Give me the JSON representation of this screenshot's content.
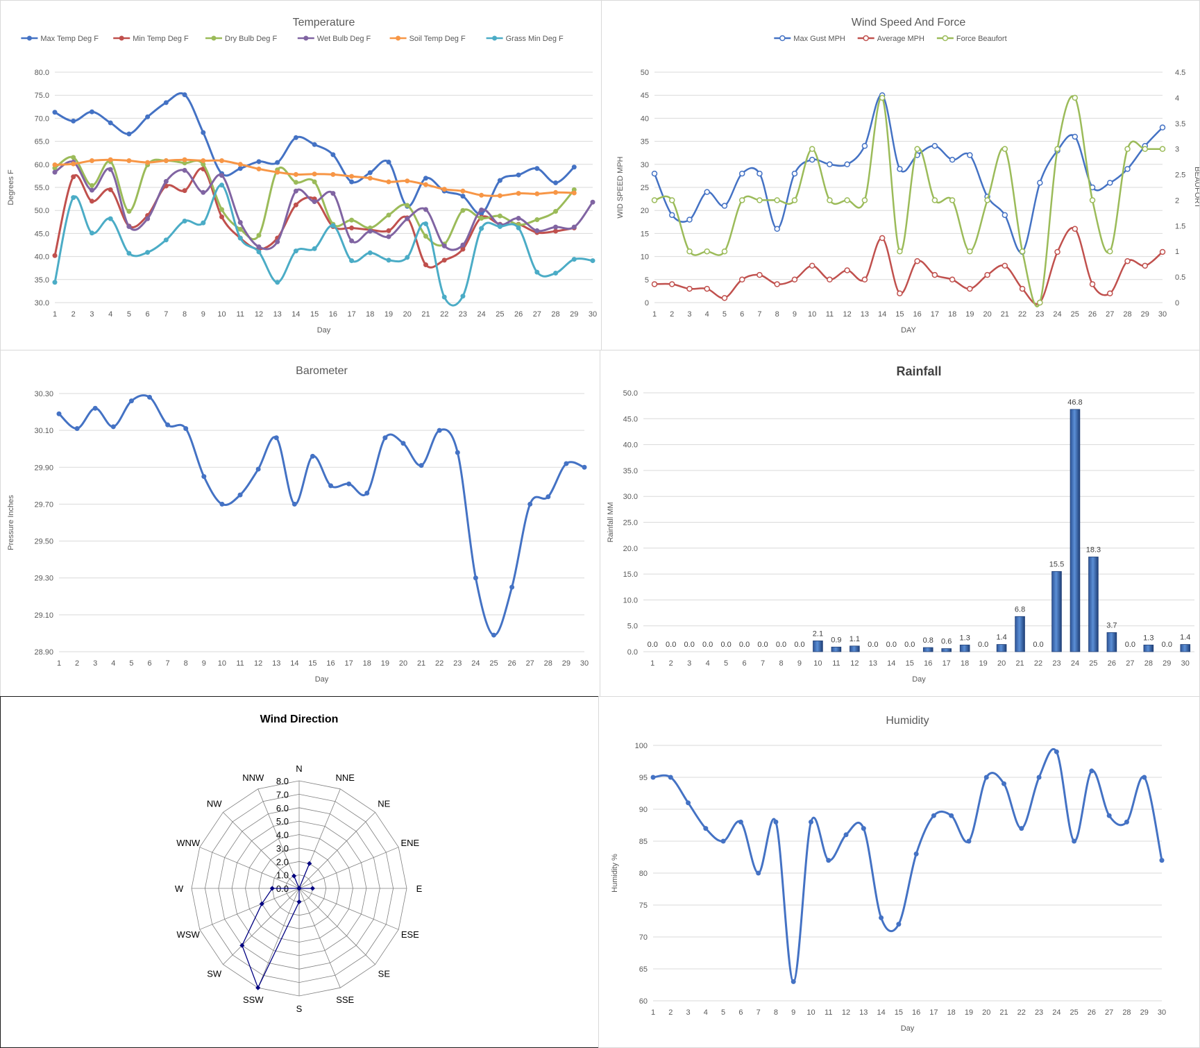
{
  "days": [
    "1",
    "2",
    "3",
    "4",
    "5",
    "6",
    "7",
    "8",
    "9",
    "10",
    "11",
    "12",
    "13",
    "14",
    "15",
    "16",
    "17",
    "18",
    "19",
    "20",
    "21",
    "22",
    "23",
    "24",
    "25",
    "26",
    "27",
    "28",
    "29",
    "30"
  ],
  "chart_data": [
    {
      "type": "line",
      "title": "Temperature",
      "xlabel": "Day",
      "ylabel": "Degrees F",
      "ylim": [
        30,
        80
      ],
      "yticks": [
        "30.0",
        "35.0",
        "40.0",
        "45.0",
        "50.0",
        "55.0",
        "60.0",
        "65.0",
        "70.0",
        "75.0",
        "80.0"
      ],
      "grid": true,
      "legend": "top",
      "series": [
        {
          "name": "Max Temp Deg F",
          "color": "#4472C4",
          "values": [
            71.3,
            69.4,
            71.4,
            69.0,
            66.6,
            70.3,
            73.4,
            75.1,
            66.9,
            58.0,
            59.1,
            60.6,
            60.4,
            65.8,
            64.3,
            62.1,
            56.2,
            58.2,
            60.5,
            50.9,
            57.0,
            54.2,
            53.1,
            49.3,
            56.5,
            57.7,
            59.1,
            56.0,
            59.4,
            null
          ]
        },
        {
          "name": "Min Temp Deg F",
          "color": "#C0504D",
          "values": [
            40.2,
            57.3,
            52.0,
            54.5,
            46.6,
            48.9,
            55.3,
            54.3,
            59.0,
            48.6,
            44.0,
            41.6,
            44.0,
            51.2,
            52.5,
            46.5,
            46.2,
            45.8,
            45.6,
            48.4,
            38.2,
            39.2,
            41.6,
            48.5,
            47.0,
            47.0,
            45.2,
            45.5,
            46.2,
            null
          ]
        },
        {
          "name": "Dry Bulb Deg F",
          "color": "#9BBB59",
          "values": [
            59.2,
            61.5,
            55.4,
            60.6,
            49.8,
            59.9,
            60.8,
            60.3,
            60.0,
            50.2,
            45.9,
            44.6,
            58.8,
            56.1,
            56.2,
            47.0,
            47.9,
            46.2,
            49.0,
            51.1,
            44.4,
            42.7,
            50.0,
            48.3,
            48.8,
            46.9,
            48.0,
            49.8,
            54.5,
            null
          ]
        },
        {
          "name": "Wet Bulb Deg F",
          "color": "#8064A2",
          "values": [
            58.3,
            60.5,
            54.4,
            58.9,
            46.5,
            48.2,
            56.3,
            58.7,
            53.9,
            57.6,
            47.4,
            42.1,
            43.2,
            54.2,
            51.9,
            53.7,
            43.4,
            45.5,
            44.3,
            48.2,
            50.2,
            42.3,
            42.5,
            50.1,
            46.9,
            48.3,
            45.6,
            46.4,
            46.4,
            51.8
          ]
        },
        {
          "name": "Soil Temp Deg F",
          "color": "#F79646",
          "values": [
            59.9,
            60.1,
            60.8,
            61.0,
            60.8,
            60.4,
            60.8,
            61.0,
            60.8,
            60.8,
            60.0,
            59.0,
            58.3,
            57.8,
            57.9,
            57.8,
            57.4,
            57.0,
            56.2,
            56.4,
            55.6,
            54.6,
            54.2,
            53.3,
            53.2,
            53.7,
            53.6,
            53.9,
            53.8,
            null
          ]
        },
        {
          "name": "Grass Min Deg F",
          "color": "#4BACC6",
          "values": [
            34.4,
            52.8,
            45.1,
            48.2,
            40.7,
            40.9,
            43.6,
            47.7,
            47.3,
            55.5,
            44.0,
            41.0,
            34.4,
            41.2,
            41.7,
            46.7,
            39.1,
            40.8,
            39.2,
            39.8,
            47.1,
            31.2,
            31.4,
            46.1,
            46.5,
            46.2,
            36.6,
            36.4,
            39.4,
            39.1
          ]
        }
      ]
    },
    {
      "type": "line",
      "title": "Wind Speed And Force",
      "xlabel": "DAY",
      "ylabel": "WID SPEED MPH",
      "y2label": "BEAUFORT",
      "ylim": [
        0,
        50
      ],
      "y2lim": [
        0,
        4.5
      ],
      "yticks": [
        "0",
        "5",
        "10",
        "15",
        "20",
        "25",
        "30",
        "35",
        "40",
        "45",
        "50"
      ],
      "y2ticks": [
        "0",
        "0.5",
        "1",
        "1.5",
        "2",
        "2.5",
        "3",
        "3.5",
        "4",
        "4.5"
      ],
      "grid": true,
      "legend": "top",
      "series": [
        {
          "name": "Max Gust MPH",
          "color": "#4472C4",
          "axis": "left",
          "values": [
            28,
            19,
            18,
            24,
            21,
            28,
            28,
            16,
            28,
            31,
            30,
            30,
            34,
            45,
            29,
            32,
            34,
            31,
            32,
            23,
            19,
            11,
            26,
            33,
            36,
            25,
            26,
            29,
            34,
            38
          ]
        },
        {
          "name": "Average MPH",
          "color": "#C0504D",
          "axis": "left",
          "values": [
            4,
            4,
            3,
            3,
            1,
            5,
            6,
            4,
            5,
            8,
            5,
            7,
            5,
            14,
            2,
            9,
            6,
            5,
            3,
            6,
            8,
            3,
            0,
            11,
            16,
            4,
            2,
            9,
            8,
            11
          ]
        },
        {
          "name": "Force Beaufort",
          "color": "#9BBB59",
          "axis": "right",
          "values": [
            2,
            2,
            1,
            1,
            1,
            2,
            2,
            2,
            2,
            3,
            2,
            2,
            2,
            4,
            1,
            3,
            2,
            2,
            1,
            2,
            3,
            1,
            0,
            3,
            4,
            2,
            1,
            3,
            3,
            3
          ]
        }
      ]
    },
    {
      "type": "line",
      "title": "Barometer",
      "xlabel": "Day",
      "ylabel": "Pressure Inches",
      "ylim": [
        28.9,
        30.3
      ],
      "yticks": [
        "28.90",
        "29.10",
        "29.30",
        "29.50",
        "29.70",
        "29.90",
        "30.10",
        "30.30"
      ],
      "grid": true,
      "series": [
        {
          "name": "",
          "color": "#4472C4",
          "values": [
            30.19,
            30.11,
            30.22,
            30.12,
            30.26,
            30.28,
            30.13,
            30.11,
            29.85,
            29.7,
            29.75,
            29.89,
            30.06,
            29.7,
            29.96,
            29.8,
            29.81,
            29.76,
            30.06,
            30.03,
            29.91,
            30.1,
            29.98,
            29.3,
            28.99,
            29.25,
            29.7,
            29.74,
            29.92,
            29.9
          ]
        }
      ]
    },
    {
      "type": "bar",
      "title": "Rainfall",
      "xlabel": "Day",
      "ylabel": "Rainfall MM",
      "ylim": [
        0,
        50
      ],
      "yticks": [
        "0.0",
        "5.0",
        "10.0",
        "15.0",
        "20.0",
        "25.0",
        "30.0",
        "35.0",
        "40.0",
        "45.0",
        "50.0"
      ],
      "grid": true,
      "values": [
        0,
        0,
        0,
        0,
        0,
        0,
        0,
        0,
        0,
        2.1,
        0.9,
        1.1,
        0,
        0,
        0,
        0.8,
        0.6,
        1.3,
        0,
        1.4,
        6.8,
        0,
        15.5,
        46.8,
        18.3,
        3.7,
        0,
        1.3,
        0,
        1.4
      ],
      "labels": [
        "0.0",
        "0.0",
        "0.0",
        "0.0",
        "0.0",
        "0.0",
        "0.0",
        "0.0",
        "0.0",
        "2.1",
        "0.9",
        "1.1",
        "0.0",
        "0.0",
        "0.0",
        "0.8",
        "0.6",
        "1.3",
        "0.0",
        "1.4",
        "6.8",
        "0.0",
        "15.5",
        "46.8",
        "18.3",
        "3.7",
        "0.0",
        "1.3",
        "0.0",
        "1.4"
      ],
      "color": "#4472C4"
    },
    {
      "type": "radar",
      "title": "Wind Direction",
      "directions": [
        "N",
        "NNE",
        "NE",
        "ENE",
        "E",
        "ESE",
        "SE",
        "SSE",
        "S",
        "SSW",
        "SW",
        "WSW",
        "W",
        "WNW",
        "NW",
        "NNW"
      ],
      "rlim": [
        0,
        8
      ],
      "rticks": [
        "0.0",
        "1.0",
        "2.0",
        "3.0",
        "4.0",
        "5.0",
        "6.0",
        "7.0",
        "8.0"
      ],
      "values": [
        0,
        2,
        0,
        0,
        1,
        0,
        0,
        0,
        1,
        8,
        6,
        3,
        2,
        0,
        0,
        1
      ],
      "color": "#000080"
    },
    {
      "type": "line",
      "title": "Humidity",
      "xlabel": "Day",
      "ylabel": "Humidity %",
      "ylim": [
        60,
        100
      ],
      "yticks": [
        "60",
        "65",
        "70",
        "75",
        "80",
        "85",
        "90",
        "95",
        "100"
      ],
      "grid": true,
      "series": [
        {
          "name": "",
          "color": "#4472C4",
          "values": [
            95,
            95,
            91,
            87,
            85,
            88,
            80,
            88,
            63,
            88,
            82,
            86,
            87,
            73,
            72,
            83,
            89,
            89,
            85,
            95,
            94,
            87,
            95,
            99,
            85,
            96,
            89,
            88,
            95,
            82
          ]
        }
      ]
    }
  ]
}
